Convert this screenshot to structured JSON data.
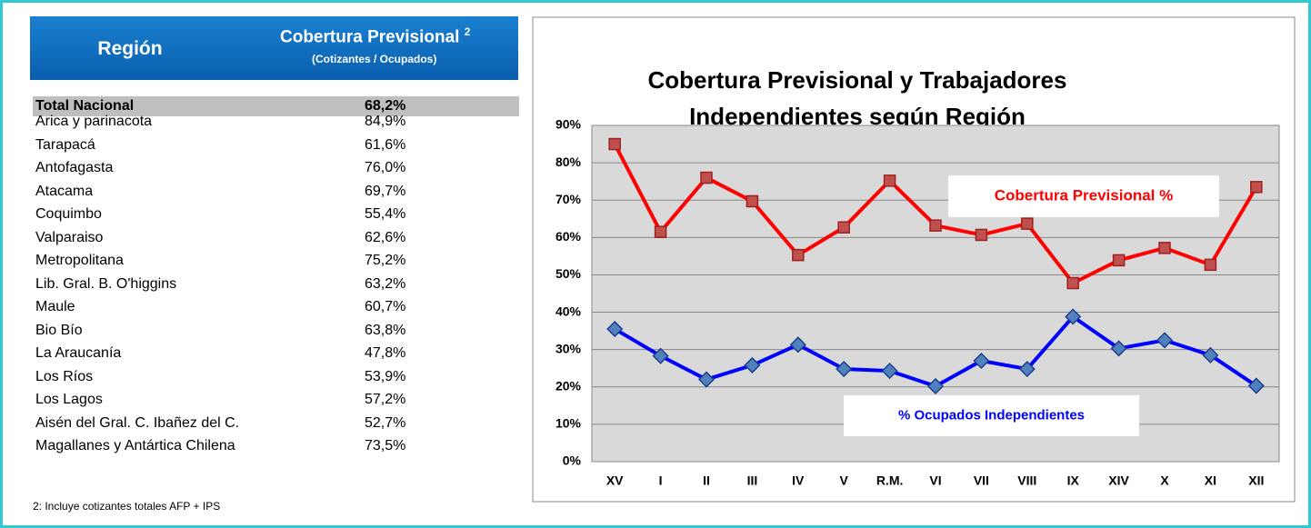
{
  "table": {
    "header": {
      "region": "Región",
      "coverage": "Cobertura Previsional",
      "coverage_note": "2",
      "coverage_sub": "(Cotizantes / Ocupados)"
    },
    "total": [
      "Total Nacional",
      "68,2%"
    ],
    "rows": [
      [
        "Arica y parinacota",
        "84,9%"
      ],
      [
        "Tarapacá",
        "61,6%"
      ],
      [
        "Antofagasta",
        "76,0%"
      ],
      [
        "Atacama",
        "69,7%"
      ],
      [
        "Coquimbo",
        "55,4%"
      ],
      [
        "Valparaiso",
        "62,6%"
      ],
      [
        "Metropolitana",
        "75,2%"
      ],
      [
        "Lib. Gral. B. O'higgins",
        "63,2%"
      ],
      [
        "Maule",
        "60,7%"
      ],
      [
        "Bio Bío",
        "63,8%"
      ],
      [
        "La Araucanía",
        "47,8%"
      ],
      [
        "Los Ríos",
        "53,9%"
      ],
      [
        "Los Lagos",
        "57,2%"
      ],
      [
        "Aisén del Gral. C. Ibañez del C.",
        "52,7%"
      ],
      [
        "Magallanes y Antártica Chilena",
        "73,5%"
      ]
    ],
    "footnote": "2: Incluye cotizantes totales AFP + IPS"
  },
  "chart_data": {
    "type": "line",
    "title": [
      "Cobertura Previsional y Trabajadores",
      "Independientes según Región"
    ],
    "categories": [
      "XV",
      "I",
      "II",
      "III",
      "IV",
      "V",
      "R.M.",
      "VI",
      "VII",
      "VIII",
      "IX",
      "XIV",
      "X",
      "XI",
      "XII"
    ],
    "series": [
      {
        "name": "Cobertura Previsional %",
        "color": "#ff0000",
        "marker": "square",
        "marker_color": "#c0504d",
        "values": [
          85,
          61.5,
          76,
          69.7,
          55.3,
          62.7,
          75.2,
          63.2,
          60.7,
          63.7,
          47.8,
          53.9,
          57.2,
          52.7,
          73.5
        ]
      },
      {
        "name": "% Ocupados Independientes",
        "color": "#0000ff",
        "marker": "diamond",
        "marker_color": "#4f81bd",
        "values": [
          35.5,
          28.3,
          22,
          25.8,
          31.3,
          24.8,
          24.3,
          20.2,
          27,
          24.8,
          38.8,
          30.3,
          32.5,
          28.5,
          20.3
        ]
      }
    ],
    "ylim": [
      0,
      90
    ],
    "yticks": [
      {
        "value": 0,
        "label": "0%"
      },
      {
        "value": 10,
        "label": "10%"
      },
      {
        "value": 20,
        "label": "20%"
      },
      {
        "value": 30,
        "label": "30%"
      },
      {
        "value": 40,
        "label": "40%"
      },
      {
        "value": 50,
        "label": "50%"
      },
      {
        "value": 60,
        "label": "60%"
      },
      {
        "value": 70,
        "label": "70%"
      },
      {
        "value": 80,
        "label": "80%"
      },
      {
        "value": 90,
        "label": "90%"
      }
    ],
    "grid": true
  }
}
